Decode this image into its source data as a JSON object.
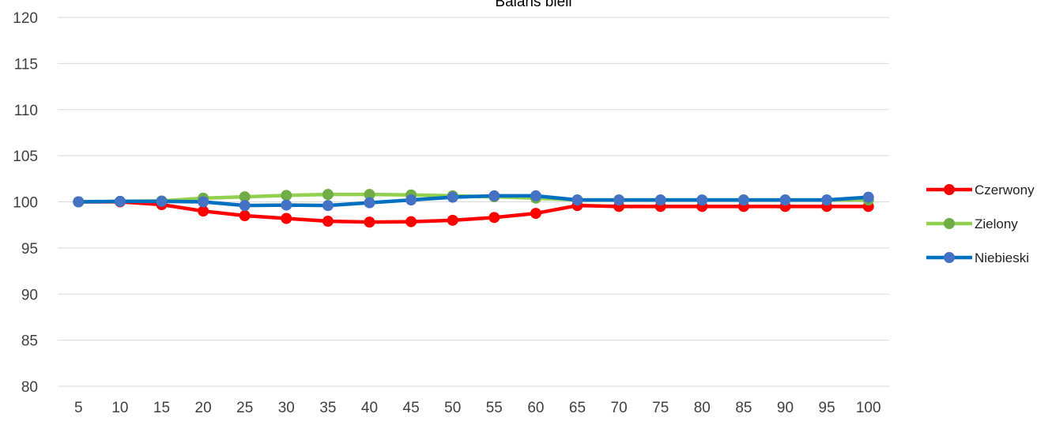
{
  "chart_data": {
    "type": "line",
    "title": "Balans bieli",
    "xlabel": "",
    "ylabel": "",
    "categories": [
      "5",
      "10",
      "15",
      "20",
      "25",
      "30",
      "35",
      "40",
      "45",
      "50",
      "55",
      "60",
      "65",
      "70",
      "75",
      "80",
      "85",
      "90",
      "95",
      "100"
    ],
    "ylim": [
      80,
      120
    ],
    "yticks": [
      80,
      85,
      90,
      95,
      100,
      105,
      110,
      115,
      120
    ],
    "grid": true,
    "legend_position": "right",
    "series": [
      {
        "name": "Czerwony",
        "color": "#ff0000",
        "marker_color": "#ff0000",
        "values": [
          100.0,
          100.0,
          99.7,
          99.0,
          98.5,
          98.2,
          97.9,
          97.8,
          97.85,
          98.0,
          98.3,
          98.75,
          99.6,
          99.5,
          99.5,
          99.5,
          99.5,
          99.5,
          99.5,
          99.5
        ]
      },
      {
        "name": "Zielony",
        "color": "#92d050",
        "marker_color": "#70ad47",
        "values": [
          100.0,
          100.05,
          100.1,
          100.4,
          100.55,
          100.7,
          100.8,
          100.8,
          100.75,
          100.65,
          100.55,
          100.4,
          100.2,
          100.2,
          100.2,
          100.2,
          100.2,
          100.2,
          100.2,
          100.2
        ]
      },
      {
        "name": "Niebieski",
        "color": "#0070c0",
        "marker_color": "#4472c4",
        "values": [
          100.0,
          100.05,
          100.05,
          100.0,
          99.6,
          99.65,
          99.6,
          99.9,
          100.2,
          100.5,
          100.65,
          100.65,
          100.2,
          100.2,
          100.2,
          100.2,
          100.2,
          100.2,
          100.2,
          100.5
        ]
      }
    ]
  }
}
